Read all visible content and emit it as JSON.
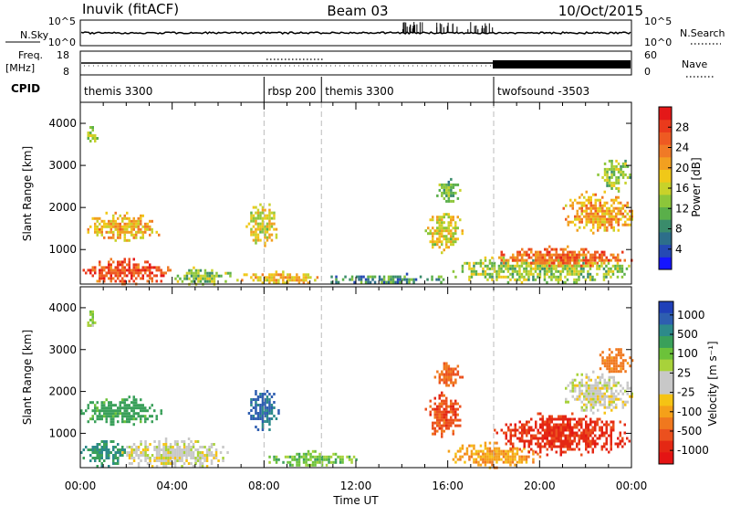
{
  "header": {
    "station": "Inuvik (fitACF)",
    "beam": "Beam 03",
    "date": "10/Oct/2015"
  },
  "top_panels": {
    "nsky_label": "N.Sky",
    "nsky_ticks": [
      "10^5",
      "10^0"
    ],
    "nsearch_label": "N.Search",
    "nsearch_ticks": [
      "10^5",
      "10^0"
    ],
    "freq_label": "Freq.",
    "freq_unit": "[MHz]",
    "freq_ticks": [
      "18",
      "8"
    ],
    "nave_label": "Nave",
    "nave_ticks": [
      "60",
      "0"
    ],
    "cpid_label": "CPID"
  },
  "cpid_segments": [
    {
      "start_hour": 0.0,
      "label": "themis 3300"
    },
    {
      "start_hour": 8.0,
      "label": "rbsp 200"
    },
    {
      "start_hour": 10.5,
      "label": "themis 3300"
    },
    {
      "start_hour": 18.0,
      "label": "twofsound -3503"
    }
  ],
  "chart_data": [
    {
      "type": "heatmap",
      "name": "power",
      "ylabel": "Slant Range [km]",
      "xlabel": "",
      "xlim": [
        0,
        24
      ],
      "ylim": [
        180,
        4500
      ],
      "y_ticks": [
        "1000",
        "2000",
        "3000",
        "4000"
      ],
      "colorbar_label": "Power [dB]",
      "colorbar_ticks": [
        "4",
        "8",
        "12",
        "16",
        "20",
        "24",
        "28"
      ],
      "colorbar_range": [
        0,
        32
      ],
      "colorbar_colors": [
        "#1515ff",
        "#2549b4",
        "#2d6e8a",
        "#3a8c6b",
        "#5aaf4a",
        "#8cc63a",
        "#c8d22a",
        "#f0c818",
        "#f2a020",
        "#f07a26",
        "#ee5a22",
        "#ea3a1c",
        "#e41818"
      ],
      "regions": [
        {
          "t0": 0.2,
          "t1": 0.7,
          "r0": 3500,
          "r1": 4000,
          "value": 14
        },
        {
          "t0": 0.0,
          "t1": 3.5,
          "r0": 1200,
          "r1": 1900,
          "value": 20
        },
        {
          "t0": 0.0,
          "t1": 4.0,
          "r0": 200,
          "r1": 800,
          "value": 27
        },
        {
          "t0": 4.0,
          "t1": 6.5,
          "r0": 200,
          "r1": 600,
          "value": 13
        },
        {
          "t0": 7.2,
          "t1": 8.6,
          "r0": 1100,
          "r1": 2100,
          "value": 17
        },
        {
          "t0": 6.5,
          "t1": 10.5,
          "r0": 200,
          "r1": 500,
          "value": 19
        },
        {
          "t0": 10.5,
          "t1": 16.0,
          "r0": 200,
          "r1": 450,
          "value": 9
        },
        {
          "t0": 15.0,
          "t1": 16.6,
          "r0": 900,
          "r1": 2000,
          "value": 17
        },
        {
          "t0": 15.4,
          "t1": 16.6,
          "r0": 2100,
          "r1": 2700,
          "value": 12
        },
        {
          "t0": 16.0,
          "t1": 24.0,
          "r0": 200,
          "r1": 900,
          "value": 14
        },
        {
          "t0": 18.0,
          "t1": 24.0,
          "r0": 600,
          "r1": 1100,
          "value": 25
        },
        {
          "t0": 21.0,
          "t1": 24.0,
          "r0": 1400,
          "r1": 2400,
          "value": 21
        },
        {
          "t0": 22.5,
          "t1": 24.0,
          "r0": 2400,
          "r1": 3200,
          "value": 14
        }
      ]
    },
    {
      "type": "heatmap",
      "name": "velocity",
      "ylabel": "Slant Range [km]",
      "xlabel": "Time UT",
      "xlim": [
        0,
        24
      ],
      "ylim": [
        180,
        4500
      ],
      "x_ticks": [
        "00:00",
        "04:00",
        "08:00",
        "12:00",
        "16:00",
        "20:00",
        "00:00"
      ],
      "y_ticks": [
        "1000",
        "2000",
        "3000",
        "4000"
      ],
      "colorbar_label": "Velocity [m s⁻¹]",
      "colorbar_ticks": [
        "1000",
        "500",
        "100",
        "25",
        "-25",
        "-100",
        "-500",
        "-1000"
      ],
      "colorbar_colors": [
        "#2040b8",
        "#2e5eb0",
        "#2d8a8a",
        "#3aa05a",
        "#6cc23a",
        "#a8d23a",
        "#c8c8c8",
        "#c8c8c8",
        "#f5c314",
        "#f5a019",
        "#f0781e",
        "#eb501e",
        "#e42814",
        "#e41414"
      ],
      "regions": [
        {
          "t0": 0.2,
          "t1": 0.7,
          "r0": 3500,
          "r1": 4000,
          "value": 60
        },
        {
          "t0": 0.0,
          "t1": 3.5,
          "r0": 1200,
          "r1": 1900,
          "value": 150
        },
        {
          "t0": 1.5,
          "t1": 6.5,
          "r0": 200,
          "r1": 900,
          "value": 0
        },
        {
          "t0": 0.0,
          "t1": 2.0,
          "r0": 200,
          "r1": 900,
          "value": 250
        },
        {
          "t0": 7.2,
          "t1": 8.6,
          "r0": 1100,
          "r1": 2100,
          "value": 600
        },
        {
          "t0": 8.0,
          "t1": 12.0,
          "r0": 200,
          "r1": 600,
          "value": 80
        },
        {
          "t0": 15.0,
          "t1": 16.6,
          "r0": 900,
          "r1": 2000,
          "value": -400
        },
        {
          "t0": 15.4,
          "t1": 16.6,
          "r0": 2100,
          "r1": 2700,
          "value": -300
        },
        {
          "t0": 16.0,
          "t1": 20.0,
          "r0": 200,
          "r1": 800,
          "value": -80
        },
        {
          "t0": 18.0,
          "t1": 24.0,
          "r0": 500,
          "r1": 1500,
          "value": -600
        },
        {
          "t0": 21.0,
          "t1": 24.0,
          "r0": 1500,
          "r1": 2500,
          "value": 0
        },
        {
          "t0": 22.5,
          "t1": 24.0,
          "r0": 2400,
          "r1": 3100,
          "value": -150
        }
      ]
    }
  ]
}
